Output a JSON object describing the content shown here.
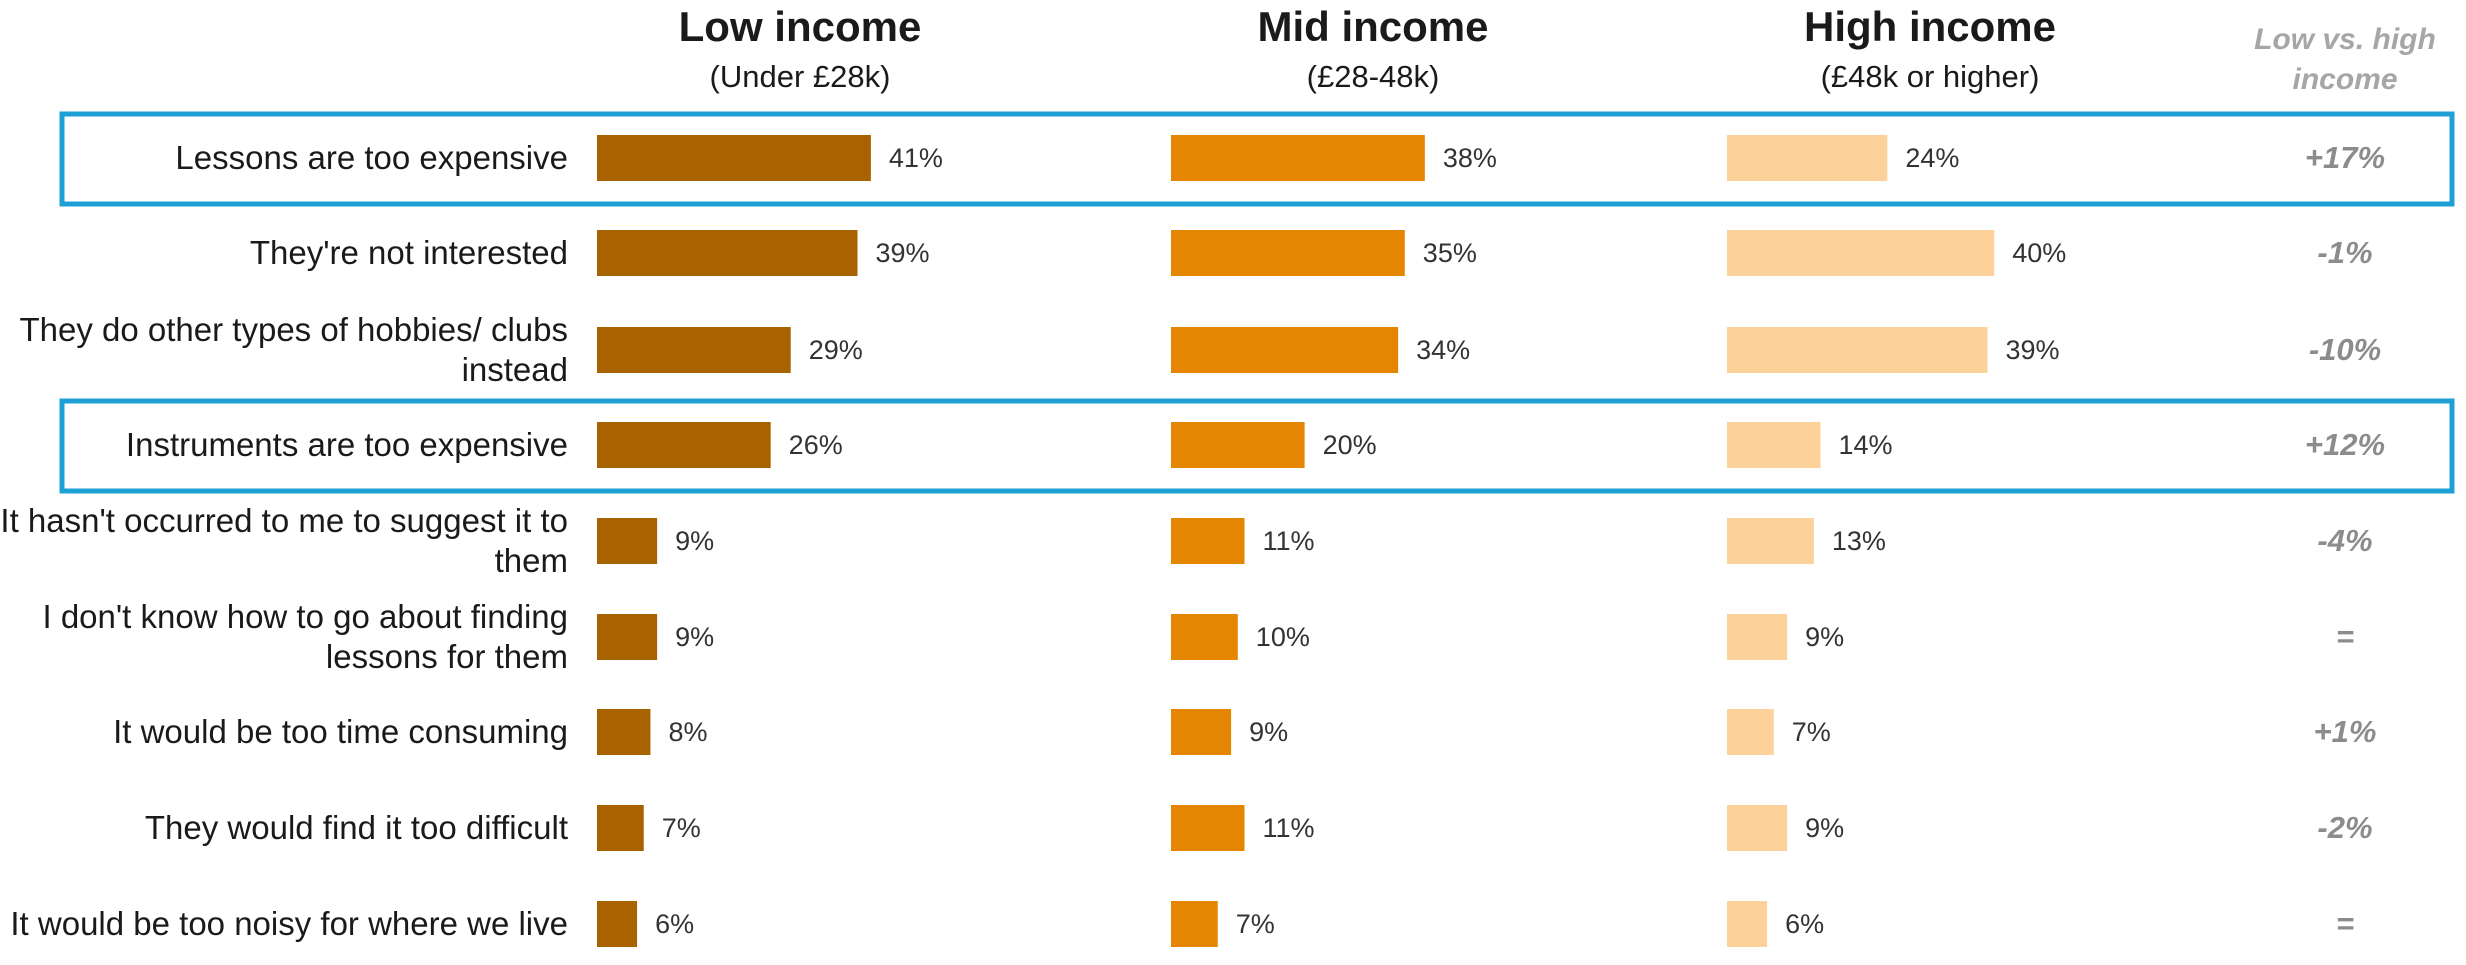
{
  "chart_data": {
    "type": "bar",
    "orientation": "horizontal",
    "categories": [
      "Lessons are too expensive",
      "They're not interested",
      "They do other types of hobbies/ clubs instead",
      "Instruments are too expensive",
      "It hasn't occurred to me to suggest it to them",
      "I don't know how to go about finding lessons for them",
      "It would be too time consuming",
      "They would find it too difficult",
      "It would be too noisy for where we live"
    ],
    "series": [
      {
        "name": "Low income",
        "subtitle": "(Under £28k)",
        "color": "#a86200",
        "values": [
          41,
          39,
          29,
          26,
          9,
          9,
          8,
          7,
          6
        ],
        "labels": [
          "41%",
          "39%",
          "29%",
          "26%",
          "9%",
          "9%",
          "8%",
          "7%",
          "6%"
        ]
      },
      {
        "name": "Mid income",
        "subtitle": "(£28-48k)",
        "color": "#e58602",
        "values": [
          38,
          35,
          34,
          20,
          11,
          10,
          9,
          11,
          7
        ],
        "labels": [
          "38%",
          "35%",
          "34%",
          "20%",
          "11%",
          "10%",
          "9%",
          "11%",
          "7%"
        ]
      },
      {
        "name": "High income",
        "subtitle": "(£48k or higher)",
        "color": "#fdd19a",
        "values": [
          24,
          40,
          39,
          14,
          13,
          9,
          7,
          9,
          6
        ],
        "labels": [
          "24%",
          "40%",
          "39%",
          "14%",
          "13%",
          "9%",
          "7%",
          "9%",
          "6%"
        ]
      }
    ],
    "difference_header": "Low vs. high income",
    "difference": [
      "+17%",
      "-1%",
      "-10%",
      "+12%",
      "-4%",
      "=",
      "+1%",
      "-2%",
      "="
    ],
    "highlighted_rows": [
      0,
      3
    ],
    "highlight_color": "#1e9fd6",
    "legend": "none",
    "grid": false
  }
}
